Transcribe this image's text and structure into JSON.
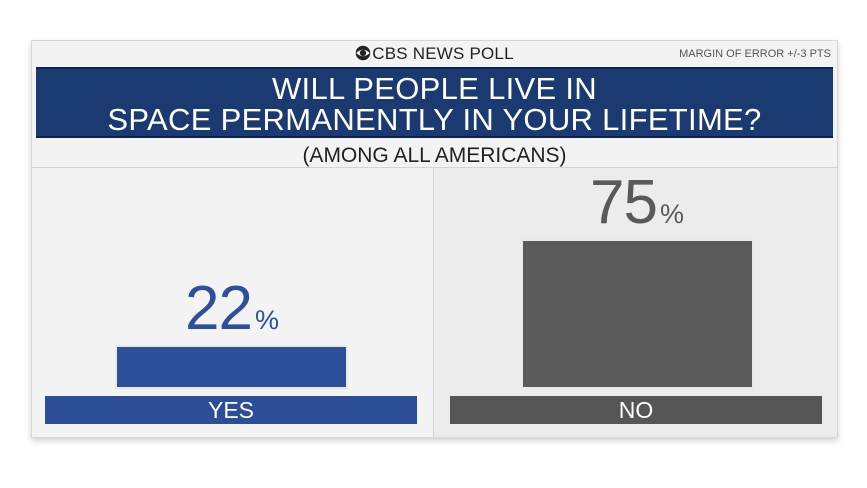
{
  "header": {
    "brand": "CBS NEWS POLL",
    "margin_of_error": "MARGIN OF ERROR +/-3 PTS"
  },
  "title": {
    "line1": "WILL PEOPLE LIVE IN",
    "line2": "SPACE PERMANENTLY IN YOUR LIFETIME?"
  },
  "subtitle": "(AMONG ALL AMERICANS)",
  "colors": {
    "yes": "#2e4f9a",
    "yes_label": "#2c4d97",
    "no": "#5a5a5a",
    "no_label": "#565656",
    "title_bg": "#1b3a72"
  },
  "chart_data": {
    "type": "bar",
    "categories": [
      "YES",
      "NO"
    ],
    "values": [
      22,
      75
    ],
    "value_labels": [
      "22",
      "75"
    ],
    "unit": "%",
    "ylim": [
      0,
      100
    ],
    "title": "WILL PEOPLE LIVE IN SPACE PERMANENTLY IN YOUR LIFETIME?",
    "subtitle": "(AMONG ALL AMERICANS)",
    "xlabel": "",
    "ylabel": "",
    "grid": false,
    "legend": "none"
  }
}
